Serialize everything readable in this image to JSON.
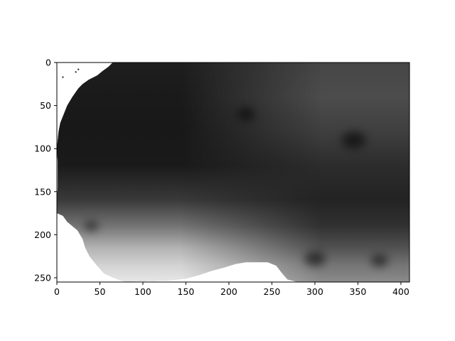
{
  "chart_data": {
    "type": "heatmap",
    "title": "",
    "xlabel": "",
    "ylabel": "",
    "colormap": "gray",
    "xlim": [
      0,
      410
    ],
    "ylim": [
      255,
      0
    ],
    "x_ticks": [
      0,
      50,
      100,
      150,
      200,
      250,
      300,
      350,
      400
    ],
    "y_ticks": [
      0,
      50,
      100,
      150,
      200,
      250
    ],
    "x_tick_labels": [
      "0",
      "50",
      "100",
      "150",
      "200",
      "250",
      "300",
      "350",
      "400"
    ],
    "y_tick_labels": [
      "0",
      "50",
      "100",
      "150",
      "200",
      "250"
    ],
    "grid": false,
    "legend": "none",
    "colors": {
      "nodata": "#ffffff",
      "low": "#0c0c0c",
      "high": "#f2f2f2",
      "axis": "#000000"
    },
    "nodata_boundary_left": [
      [
        0,
        65
      ],
      [
        5,
        60
      ],
      [
        10,
        53
      ],
      [
        15,
        47
      ],
      [
        20,
        37
      ],
      [
        25,
        30
      ],
      [
        30,
        25
      ],
      [
        40,
        18
      ],
      [
        50,
        12
      ],
      [
        60,
        8
      ],
      [
        70,
        4
      ],
      [
        80,
        2
      ],
      [
        90,
        1
      ],
      [
        100,
        0
      ],
      [
        115,
        1
      ],
      [
        130,
        1
      ],
      [
        145,
        1
      ],
      [
        160,
        0
      ],
      [
        175,
        0
      ],
      [
        178,
        7
      ],
      [
        185,
        12
      ],
      [
        195,
        24
      ],
      [
        205,
        30
      ],
      [
        215,
        33
      ],
      [
        225,
        38
      ],
      [
        235,
        46
      ],
      [
        245,
        55
      ],
      [
        250,
        66
      ],
      [
        255,
        80
      ]
    ],
    "nodata_boundary_bottom": [
      [
        66,
        255
      ],
      [
        100,
        254
      ],
      [
        130,
        253
      ],
      [
        150,
        251
      ],
      [
        165,
        247
      ],
      [
        180,
        242
      ],
      [
        195,
        238
      ],
      [
        208,
        234
      ],
      [
        220,
        232
      ],
      [
        245,
        232
      ],
      [
        255,
        236
      ],
      [
        262,
        245
      ],
      [
        268,
        252
      ],
      [
        280,
        255
      ]
    ],
    "brightness_bands": [
      {
        "y": 0,
        "left": 0.08,
        "right": 0.25
      },
      {
        "y": 40,
        "left": 0.06,
        "right": 0.28
      },
      {
        "y": 80,
        "left": 0.05,
        "right": 0.22
      },
      {
        "y": 120,
        "left": 0.06,
        "right": 0.14
      },
      {
        "y": 160,
        "left": 0.2,
        "right": 0.1
      },
      {
        "y": 190,
        "left": 0.45,
        "right": 0.16
      },
      {
        "y": 215,
        "left": 0.72,
        "right": 0.3
      },
      {
        "y": 235,
        "left": 0.86,
        "right": 0.45
      },
      {
        "y": 255,
        "left": 0.95,
        "right": 0.55
      }
    ],
    "dark_features": [
      {
        "x": 345,
        "y": 90,
        "r": 14
      },
      {
        "x": 220,
        "y": 60,
        "r": 10
      },
      {
        "x": 300,
        "y": 228,
        "r": 12
      },
      {
        "x": 375,
        "y": 230,
        "r": 10
      },
      {
        "x": 40,
        "y": 190,
        "r": 8
      }
    ],
    "specks": [
      {
        "x": 7,
        "y": 17
      },
      {
        "x": 22,
        "y": 11
      },
      {
        "x": 25,
        "y": 8
      }
    ]
  }
}
